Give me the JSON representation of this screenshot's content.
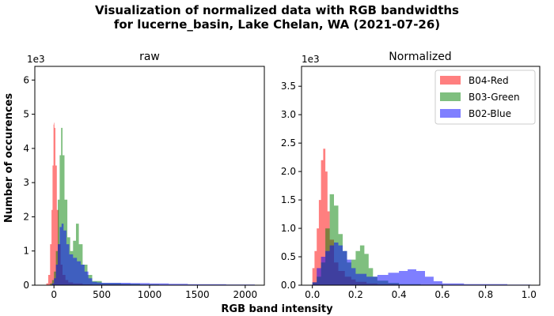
{
  "suptitle": {
    "line1": "Visualization of normalized data with RGB bandwidths",
    "line2": "for lucerne_basin, Lake Chelan, WA (2021-07-26)"
  },
  "supxlabel": "RGB band intensity",
  "colors": {
    "red": "#ff0000",
    "green": "#008000",
    "blue": "#0000ff"
  },
  "chart_data": [
    {
      "type": "histogram",
      "title": "raw",
      "ylabel": "Number of occurences",
      "y_multiplier": "1e3",
      "xlim": [
        -200,
        2200
      ],
      "ylim": [
        0,
        6.4
      ],
      "xticks": [
        0,
        500,
        1000,
        1500,
        2000
      ],
      "yticks": [
        0,
        1,
        2,
        3,
        4,
        5,
        6
      ],
      "legend": false,
      "series": [
        {
          "name": "B04-Red",
          "color": "#ff0000",
          "x": [
            -80,
            -60,
            -40,
            -25,
            -15,
            -5,
            0,
            5,
            15,
            30,
            50,
            70,
            90,
            120,
            150,
            200,
            300,
            400,
            600,
            800,
            1000,
            1340
          ],
          "y": [
            0.05,
            0.3,
            1.2,
            2.2,
            3.5,
            4.7,
            4.75,
            4.6,
            3.5,
            2.2,
            1.2,
            0.6,
            0.3,
            0.15,
            0.08,
            0.05,
            0.03,
            0.02,
            0.02,
            0.01,
            0.01,
            0.01
          ]
        },
        {
          "name": "B03-Green",
          "color": "#008000",
          "x": [
            -40,
            -20,
            0,
            20,
            40,
            60,
            75,
            90,
            110,
            140,
            170,
            200,
            230,
            260,
            300,
            350,
            400,
            500,
            700,
            900,
            1100,
            1300
          ],
          "y": [
            0.05,
            0.15,
            0.4,
            1.0,
            2.5,
            3.8,
            4.6,
            3.8,
            2.5,
            1.4,
            1.0,
            1.3,
            1.8,
            1.2,
            0.6,
            0.3,
            0.12,
            0.06,
            0.04,
            0.02,
            0.01,
            0.01
          ]
        },
        {
          "name": "B02-Blue",
          "color": "#0000ff",
          "x": [
            -20,
            0,
            20,
            40,
            60,
            80,
            100,
            130,
            160,
            200,
            240,
            280,
            320,
            360,
            400,
            450,
            500,
            600,
            800,
            1000,
            1200,
            1400,
            1800,
            2100
          ],
          "y": [
            0.05,
            0.2,
            0.6,
            1.2,
            1.7,
            1.8,
            1.6,
            1.2,
            0.9,
            0.8,
            0.7,
            0.6,
            0.4,
            0.2,
            0.1,
            0.08,
            0.07,
            0.07,
            0.06,
            0.05,
            0.04,
            0.03,
            0.02,
            0.01
          ]
        }
      ]
    },
    {
      "type": "histogram",
      "title": "Normalized",
      "y_multiplier": "1e3",
      "xlim": [
        -0.05,
        1.05
      ],
      "ylim": [
        0,
        3.85
      ],
      "xticks": [
        0.0,
        0.2,
        0.4,
        0.6,
        0.8,
        1.0
      ],
      "yticks": [
        0.0,
        0.5,
        1.0,
        1.5,
        2.0,
        2.5,
        3.0,
        3.5
      ],
      "legend": "top-right",
      "series": [
        {
          "name": "B04-Red",
          "color": "#ff0000",
          "x": [
            0.0,
            0.01,
            0.02,
            0.03,
            0.04,
            0.05,
            0.06,
            0.07,
            0.08,
            0.1,
            0.12,
            0.15,
            0.18,
            0.2,
            0.25,
            0.3,
            0.4,
            0.5,
            0.6
          ],
          "y": [
            0.3,
            0.6,
            1.0,
            1.5,
            2.2,
            2.4,
            2.0,
            1.3,
            0.8,
            0.4,
            0.25,
            0.15,
            0.1,
            0.06,
            0.03,
            0.02,
            0.01,
            0.01,
            0.0
          ]
        },
        {
          "name": "B03-Green",
          "color": "#008000",
          "x": [
            0.0,
            0.02,
            0.04,
            0.06,
            0.08,
            0.1,
            0.12,
            0.14,
            0.16,
            0.18,
            0.2,
            0.22,
            0.24,
            0.26,
            0.28,
            0.3,
            0.35,
            0.4,
            0.5,
            0.6
          ],
          "y": [
            0.05,
            0.15,
            0.4,
            1.0,
            1.6,
            1.4,
            0.9,
            0.6,
            0.4,
            0.45,
            0.6,
            0.7,
            0.55,
            0.3,
            0.15,
            0.08,
            0.04,
            0.02,
            0.01,
            0.0
          ]
        },
        {
          "name": "B02-Blue",
          "color": "#0000ff",
          "x": [
            0.0,
            0.02,
            0.04,
            0.06,
            0.08,
            0.1,
            0.12,
            0.14,
            0.16,
            0.18,
            0.2,
            0.25,
            0.3,
            0.35,
            0.4,
            0.44,
            0.48,
            0.52,
            0.56,
            0.6,
            0.7,
            0.8,
            0.9,
            1.0
          ],
          "y": [
            0.05,
            0.3,
            0.5,
            0.6,
            0.7,
            0.75,
            0.7,
            0.6,
            0.45,
            0.3,
            0.2,
            0.15,
            0.18,
            0.22,
            0.25,
            0.28,
            0.25,
            0.15,
            0.07,
            0.03,
            0.02,
            0.02,
            0.01,
            0.01
          ]
        }
      ]
    }
  ]
}
